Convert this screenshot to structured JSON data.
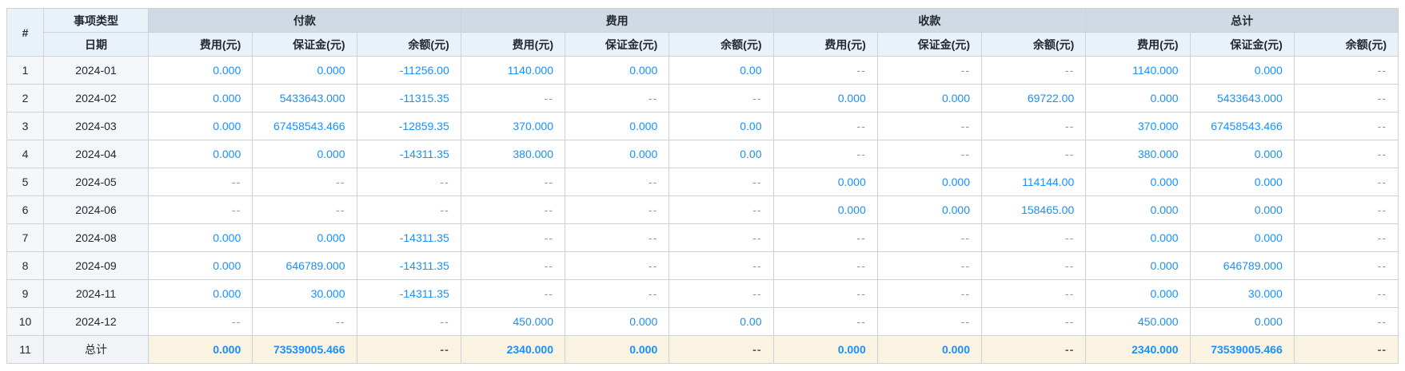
{
  "colors": {
    "value_blue": "#1890ff",
    "dash_gray": "#8f959e",
    "group_header_bg": "#cfdae4",
    "sub_header_bg": "#e9f1f9",
    "row_label_bg": "#f4f6f9",
    "total_row_bg": "#fbf3e1",
    "border": "#cdd1d8"
  },
  "table": {
    "corner_header": "#",
    "row_header_top": "事项类型",
    "row_header_bottom": "日期",
    "groups": [
      {
        "label": "付款"
      },
      {
        "label": "费用"
      },
      {
        "label": "收款"
      },
      {
        "label": "总计"
      }
    ],
    "sub_columns": [
      "费用(元)",
      "保证金(元)",
      "余额(元)"
    ],
    "rows": [
      {
        "index": "1",
        "date": "2024-01",
        "is_total": false,
        "cells": [
          "0.000",
          "0.000",
          "-11256.00",
          "1140.000",
          "0.000",
          "0.00",
          "--",
          "--",
          "--",
          "1140.000",
          "0.000",
          "--"
        ]
      },
      {
        "index": "2",
        "date": "2024-02",
        "is_total": false,
        "cells": [
          "0.000",
          "5433643.000",
          "-11315.35",
          "--",
          "--",
          "--",
          "0.000",
          "0.000",
          "69722.00",
          "0.000",
          "5433643.000",
          "--"
        ]
      },
      {
        "index": "3",
        "date": "2024-03",
        "is_total": false,
        "cells": [
          "0.000",
          "67458543.466",
          "-12859.35",
          "370.000",
          "0.000",
          "0.00",
          "--",
          "--",
          "--",
          "370.000",
          "67458543.466",
          "--"
        ]
      },
      {
        "index": "4",
        "date": "2024-04",
        "is_total": false,
        "cells": [
          "0.000",
          "0.000",
          "-14311.35",
          "380.000",
          "0.000",
          "0.00",
          "--",
          "--",
          "--",
          "380.000",
          "0.000",
          "--"
        ]
      },
      {
        "index": "5",
        "date": "2024-05",
        "is_total": false,
        "cells": [
          "--",
          "--",
          "--",
          "--",
          "--",
          "--",
          "0.000",
          "0.000",
          "114144.00",
          "0.000",
          "0.000",
          "--"
        ]
      },
      {
        "index": "6",
        "date": "2024-06",
        "is_total": false,
        "cells": [
          "--",
          "--",
          "--",
          "--",
          "--",
          "--",
          "0.000",
          "0.000",
          "158465.00",
          "0.000",
          "0.000",
          "--"
        ]
      },
      {
        "index": "7",
        "date": "2024-08",
        "is_total": false,
        "cells": [
          "0.000",
          "0.000",
          "-14311.35",
          "--",
          "--",
          "--",
          "--",
          "--",
          "--",
          "0.000",
          "0.000",
          "--"
        ]
      },
      {
        "index": "8",
        "date": "2024-09",
        "is_total": false,
        "cells": [
          "0.000",
          "646789.000",
          "-14311.35",
          "--",
          "--",
          "--",
          "--",
          "--",
          "--",
          "0.000",
          "646789.000",
          "--"
        ]
      },
      {
        "index": "9",
        "date": "2024-11",
        "is_total": false,
        "cells": [
          "0.000",
          "30.000",
          "-14311.35",
          "--",
          "--",
          "--",
          "--",
          "--",
          "--",
          "0.000",
          "30.000",
          "--"
        ]
      },
      {
        "index": "10",
        "date": "2024-12",
        "is_total": false,
        "cells": [
          "--",
          "--",
          "--",
          "450.000",
          "0.000",
          "0.00",
          "--",
          "--",
          "--",
          "450.000",
          "0.000",
          "--"
        ]
      },
      {
        "index": "11",
        "date": "总计",
        "is_total": true,
        "cells": [
          "0.000",
          "73539005.466",
          "--",
          "2340.000",
          "0.000",
          "--",
          "0.000",
          "0.000",
          "--",
          "2340.000",
          "73539005.466",
          "--"
        ]
      }
    ]
  }
}
